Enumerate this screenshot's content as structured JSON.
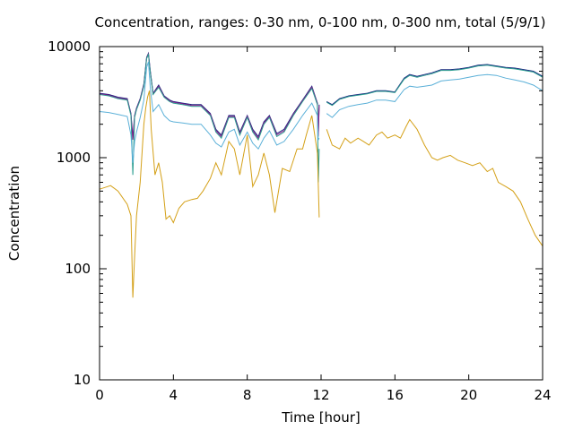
{
  "chart_data": {
    "type": "line",
    "title": "Concentration, ranges: 0-30 nm, 0-100 nm, 0-300 nm, total (5/9/1)",
    "xlabel": "Time [hour]",
    "ylabel": "Concentration",
    "xlim": [
      0,
      24
    ],
    "ylim": [
      10,
      10000
    ],
    "y_scale": "log",
    "grid": false,
    "legend": "none",
    "x_ticks": [
      "0",
      "4",
      "8",
      "12",
      "16",
      "20",
      "24"
    ],
    "y_ticks": [
      "10",
      "100",
      "1000",
      "10000"
    ],
    "series": [
      {
        "color": "#1a237e",
        "x": [
          0,
          0.5,
          1,
          1.5,
          1.7,
          1.8,
          1.9,
          2.0,
          2.2,
          2.4,
          2.55,
          2.65,
          2.75,
          2.9,
          3.2,
          3.5,
          3.8,
          4,
          4.5,
          5,
          5.5,
          6,
          6.3,
          6.6,
          7,
          7.3,
          7.6,
          8,
          8.3,
          8.6,
          8.9,
          9.2,
          9.6,
          10,
          10.5,
          11,
          11.5,
          11.8,
          11.85,
          11.9
        ],
        "y": [
          3800,
          3700,
          3500,
          3400,
          2500,
          1500,
          2400,
          2800,
          3400,
          4600,
          8000,
          8700,
          6000,
          3800,
          4500,
          3600,
          3300,
          3200,
          3100,
          3000,
          3000,
          2500,
          1800,
          1600,
          2400,
          2400,
          1700,
          2400,
          1800,
          1550,
          2100,
          2400,
          1650,
          1800,
          2500,
          3300,
          4400,
          3100,
          1600,
          3000
        ]
      },
      {
        "color": "#8b1a8b",
        "x": [
          0,
          0.5,
          1,
          1.5,
          1.7,
          1.8,
          1.9,
          2.0,
          2.2,
          2.4,
          2.55,
          2.65,
          2.75,
          2.9,
          3.2,
          3.5,
          3.8,
          4,
          4.5,
          5,
          5.5,
          6,
          6.3,
          6.6,
          7,
          7.3,
          7.6,
          8,
          8.3,
          8.6,
          8.9,
          9.2,
          9.6,
          10,
          10.5,
          11,
          11.5,
          11.8,
          11.85,
          11.9
        ],
        "y": [
          3750,
          3650,
          3450,
          3350,
          2450,
          1450,
          2350,
          2750,
          3350,
          4500,
          7900,
          8600,
          5900,
          3750,
          4400,
          3550,
          3250,
          3150,
          3050,
          2950,
          2950,
          2450,
          1750,
          1550,
          2350,
          2350,
          1650,
          2350,
          1750,
          1500,
          2050,
          2350,
          1600,
          1750,
          2450,
          3250,
          4300,
          3050,
          1550,
          2950
        ]
      },
      {
        "color": "#2a9d8f",
        "x": [
          0,
          0.5,
          1,
          1.5,
          1.7,
          1.8,
          1.9,
          2.0,
          2.2,
          2.4,
          2.55,
          2.65,
          2.75,
          2.9,
          3.2,
          3.5,
          3.8,
          4,
          4.5,
          5,
          5.5,
          6,
          6.3,
          6.6,
          7,
          7.3,
          7.6,
          8,
          8.3,
          8.6,
          8.9,
          9.2,
          9.6,
          10,
          10.5,
          11,
          11.5,
          11.8,
          11.85,
          11.9
        ],
        "y": [
          3700,
          3600,
          3400,
          3300,
          2400,
          700,
          2300,
          2700,
          3300,
          4400,
          7800,
          8500,
          5800,
          3700,
          4300,
          3500,
          3200,
          3100,
          3000,
          2900,
          2900,
          2400,
          1700,
          1500,
          2300,
          2300,
          1600,
          2300,
          1700,
          1450,
          2000,
          2300,
          1550,
          1700,
          2400,
          3200,
          4200,
          3000,
          600,
          1200
        ]
      },
      {
        "color": "#5bb0d8",
        "x": [
          0,
          0.5,
          1,
          1.5,
          1.7,
          1.8,
          1.9,
          2.0,
          2.2,
          2.4,
          2.55,
          2.65,
          2.75,
          2.9,
          3.2,
          3.5,
          3.8,
          4,
          4.5,
          5,
          5.5,
          6,
          6.3,
          6.6,
          7,
          7.3,
          7.6,
          8,
          8.3,
          8.6,
          8.9,
          9.2,
          9.6,
          10,
          10.5,
          11,
          11.5,
          11.8,
          11.85,
          11.9
        ],
        "y": [
          2600,
          2550,
          2450,
          2350,
          1600,
          900,
          1400,
          1700,
          2300,
          3300,
          6500,
          7300,
          4200,
          2600,
          3000,
          2400,
          2150,
          2100,
          2050,
          2000,
          2000,
          1600,
          1350,
          1250,
          1700,
          1800,
          1300,
          1700,
          1350,
          1200,
          1500,
          1750,
          1300,
          1400,
          1800,
          2400,
          3100,
          2400,
          1450,
          1500
        ]
      },
      {
        "color": "#d4a017",
        "x": [
          0,
          0.3,
          0.6,
          1,
          1.5,
          1.7,
          1.8,
          1.9,
          2.0,
          2.2,
          2.4,
          2.5,
          2.6,
          2.7,
          2.8,
          3.0,
          3.2,
          3.4,
          3.6,
          3.8,
          4,
          4.3,
          4.6,
          5,
          5.3,
          5.6,
          6,
          6.3,
          6.6,
          7,
          7.3,
          7.6,
          8,
          8.3,
          8.6,
          8.9,
          9.2,
          9.5,
          9.9,
          10.3,
          10.7,
          11.0,
          11.2,
          11.5,
          11.8,
          11.9
        ],
        "y": [
          520,
          540,
          560,
          500,
          380,
          300,
          55,
          130,
          300,
          600,
          2000,
          2800,
          3500,
          4000,
          1800,
          700,
          900,
          600,
          280,
          300,
          260,
          350,
          400,
          420,
          430,
          500,
          650,
          900,
          700,
          1400,
          1200,
          700,
          1600,
          550,
          700,
          1100,
          700,
          320,
          800,
          750,
          1200,
          1200,
          1600,
          2400,
          1100,
          290
        ]
      },
      {
        "color": "#1a237e",
        "x": [
          12.3,
          12.6,
          13,
          13.5,
          14,
          14.5,
          15,
          15.5,
          16,
          16.5,
          16.8,
          17.2,
          17.6,
          18,
          18.5,
          19,
          19.5,
          20,
          20.5,
          21,
          21.5,
          22,
          22.5,
          23,
          23.5,
          24
        ],
        "y": [
          3200,
          3000,
          3400,
          3600,
          3700,
          3800,
          4000,
          4000,
          3900,
          5200,
          5600,
          5400,
          5600,
          5800,
          6200,
          6200,
          6300,
          6500,
          6800,
          6900,
          6700,
          6500,
          6400,
          6200,
          6000,
          5400
        ]
      },
      {
        "color": "#2a9d8f",
        "x": [
          12.3,
          12.6,
          13,
          13.5,
          14,
          14.5,
          15,
          15.5,
          16,
          16.5,
          16.8,
          17.2,
          17.6,
          18,
          18.5,
          19,
          19.5,
          20,
          20.5,
          21,
          21.5,
          22,
          22.5,
          23,
          23.5,
          24
        ],
        "y": [
          3150,
          2950,
          3350,
          3550,
          3650,
          3750,
          3950,
          3950,
          3850,
          5100,
          5500,
          5300,
          5500,
          5700,
          6100,
          6100,
          6200,
          6400,
          6700,
          6800,
          6600,
          6400,
          6300,
          6100,
          5900,
          5300
        ]
      },
      {
        "color": "#5bb0d8",
        "x": [
          12.3,
          12.6,
          13,
          13.5,
          14,
          14.5,
          15,
          15.5,
          16,
          16.5,
          16.8,
          17.2,
          17.6,
          18,
          18.5,
          19,
          19.5,
          20,
          20.5,
          21,
          21.5,
          22,
          22.5,
          23,
          23.5,
          24
        ],
        "y": [
          2500,
          2300,
          2700,
          2900,
          3000,
          3100,
          3300,
          3300,
          3200,
          4100,
          4400,
          4300,
          4400,
          4500,
          4900,
          5000,
          5100,
          5300,
          5500,
          5600,
          5500,
          5200,
          5000,
          4800,
          4500,
          4000
        ]
      },
      {
        "color": "#d4a017",
        "x": [
          12.3,
          12.6,
          13,
          13.3,
          13.6,
          14,
          14.3,
          14.6,
          15,
          15.3,
          15.6,
          16,
          16.3,
          16.6,
          16.8,
          17.2,
          17.6,
          18,
          18.3,
          18.6,
          19,
          19.4,
          19.8,
          20.2,
          20.6,
          21,
          21.3,
          21.6,
          22,
          22.4,
          22.8,
          23.2,
          23.6,
          24
        ],
        "y": [
          1800,
          1300,
          1200,
          1500,
          1350,
          1500,
          1400,
          1300,
          1600,
          1700,
          1500,
          1600,
          1500,
          1900,
          2200,
          1800,
          1300,
          1000,
          950,
          1000,
          1050,
          950,
          900,
          850,
          900,
          750,
          800,
          600,
          550,
          500,
          400,
          280,
          200,
          160
        ]
      }
    ]
  }
}
